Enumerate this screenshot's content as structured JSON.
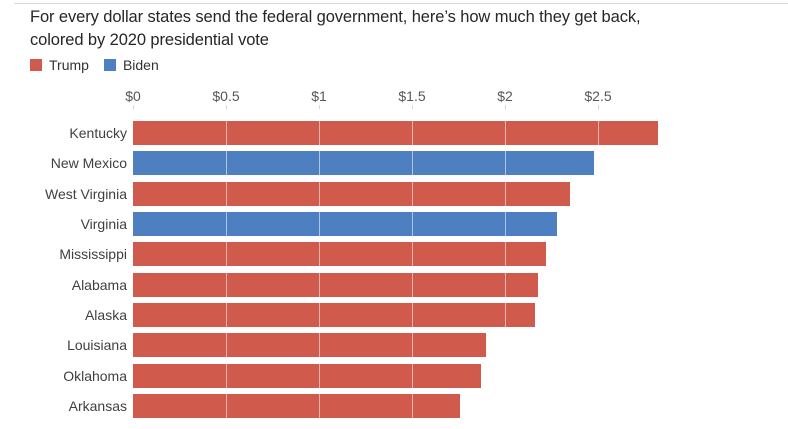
{
  "header": {
    "title_lines": [
      "For every dollar states send the federal government, here’s how much they get back,",
      "colored by 2020 presidential vote"
    ]
  },
  "legend": {
    "items": [
      {
        "label": "Trump",
        "color": "#d05a4c"
      },
      {
        "label": "Biden",
        "color": "#4e7fc1"
      }
    ]
  },
  "chart_data": {
    "type": "bar",
    "orientation": "horizontal",
    "title": "For every dollar states send the federal government, here’s how much they get back, colored by 2020 presidential vote",
    "xlabel": "",
    "ylabel": "",
    "categories": [
      "Kentucky",
      "New Mexico",
      "West Virginia",
      "Virginia",
      "Mississippi",
      "Alabama",
      "Alaska",
      "Louisiana",
      "Oklahoma",
      "Arkansas"
    ],
    "values": [
      2.82,
      2.48,
      2.35,
      2.28,
      2.22,
      2.18,
      2.16,
      1.9,
      1.87,
      1.76
    ],
    "parties": [
      "Trump",
      "Biden",
      "Trump",
      "Biden",
      "Trump",
      "Trump",
      "Trump",
      "Trump",
      "Trump",
      "Trump"
    ],
    "colors": {
      "Trump": "#d05a4c",
      "Biden": "#4e7fc1"
    },
    "x_ticks": {
      "labels": [
        "$0",
        "$0.5",
        "$1",
        "$1.5",
        "$2",
        "$2.5"
      ],
      "values": [
        0,
        0.5,
        1,
        1.5,
        2,
        2.5
      ]
    },
    "xlim": [
      0,
      3.5
    ],
    "grid": true,
    "gridline_values": [
      0.5,
      1,
      1.5,
      2,
      2.5
    ],
    "legend_position": "top-left",
    "legend_entries": [
      "Trump",
      "Biden"
    ]
  }
}
